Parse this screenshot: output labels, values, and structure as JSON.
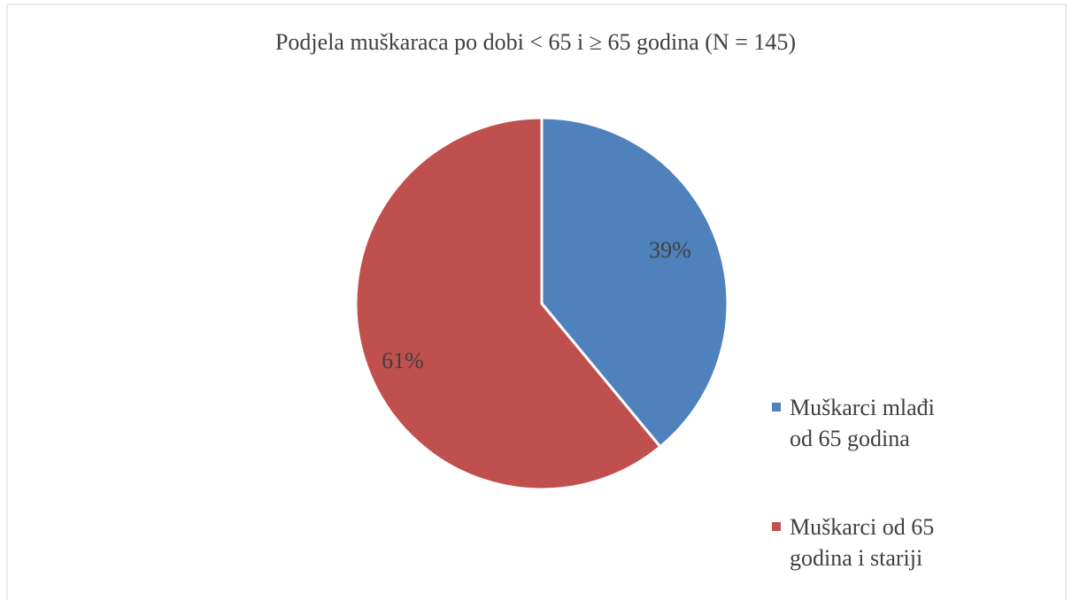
{
  "chart_data": {
    "type": "pie",
    "title": "Podjela muškaraca po dobi < 65 i ≥ 65 godina (N = 145)",
    "categories": [
      "Muškarci mlađi od 65 godina",
      "Muškarci od 65 godina i stariji"
    ],
    "values": [
      39,
      61
    ],
    "value_labels": [
      "39%",
      "61%"
    ],
    "colors": [
      "#4f81bd",
      "#c0504d"
    ],
    "legend": "right"
  }
}
